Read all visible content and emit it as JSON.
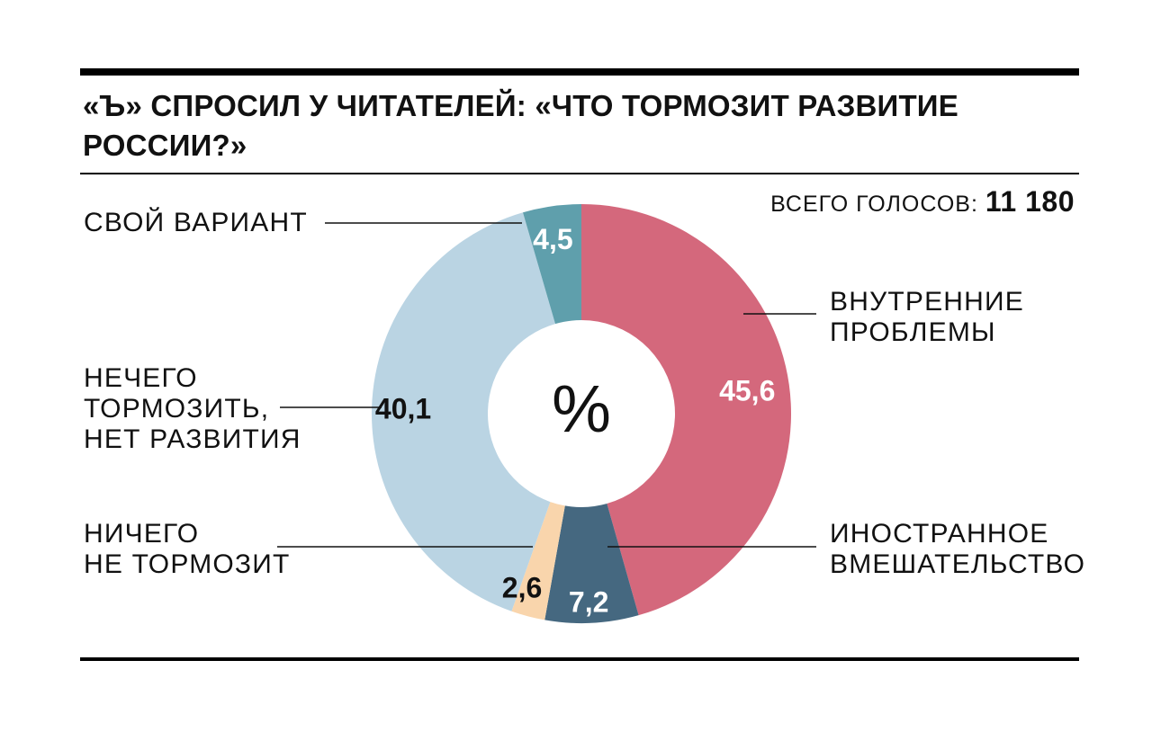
{
  "title": "«Ъ» СПРОСИЛ У ЧИТАТЕЛЕЙ: «ЧТО ТОРМОЗИТ РАЗВИТИЕ РОССИИ?»",
  "total": {
    "label": "ВСЕГО ГОЛОСОВ:",
    "value": "11 180"
  },
  "chart_data": {
    "type": "pie",
    "center_label": "%",
    "slices": [
      {
        "label": "ВНУТРЕННИЕ ПРОБЛЕМЫ",
        "value": 45.6,
        "value_text": "45,6",
        "color": "#D4687C",
        "text_color": "#FFFFFF"
      },
      {
        "label": "ИНОСТРАННОЕ ВМЕШАТЕЛЬСТВО",
        "value": 7.2,
        "value_text": "7,2",
        "color": "#456880",
        "text_color": "#FFFFFF"
      },
      {
        "label": "НИЧЕГО НЕ ТОРМОЗИТ",
        "value": 2.6,
        "value_text": "2,6",
        "color": "#F9D5AC",
        "text_color": "#111111"
      },
      {
        "label": "НЕЧЕГО ТОРМОЗИТЬ, НЕТ РАЗВИТИЯ",
        "value": 40.1,
        "value_text": "40,1",
        "color": "#BAD4E3",
        "text_color": "#111111"
      },
      {
        "label": "СВОЙ ВАРИАНТ",
        "value": 4.5,
        "value_text": "4,5",
        "color": "#5F9FAC",
        "text_color": "#FFFFFF"
      }
    ]
  },
  "labels": {
    "internal": "ВНУТРЕННИЕ\nПРОБЛЕМЫ",
    "foreign": "ИНОСТРАННОЕ\nВМЕШАТЕЛЬСТВО",
    "nothing_slows": "НИЧЕГО\nНЕ ТОРМОЗИТ",
    "no_development": "НЕЧЕГО\nТОРМОЗИТЬ,\nНЕТ РАЗВИТИЯ",
    "own_option": "СВОЙ ВАРИАНТ"
  }
}
